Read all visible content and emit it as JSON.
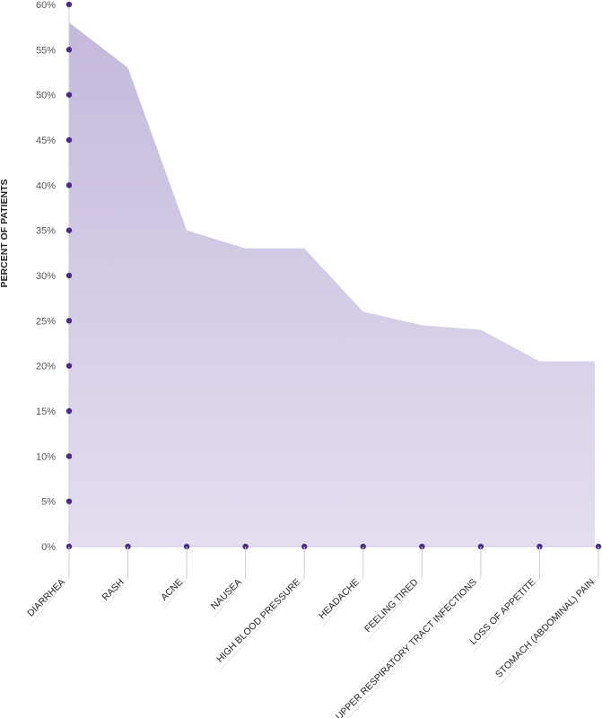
{
  "chart_data": {
    "type": "area",
    "ylabel": "PERCENT OF PATIENTS",
    "xlabel": "",
    "title": "",
    "y_unit": "%",
    "ylim": [
      0,
      60
    ],
    "y_ticks": [
      0,
      5,
      10,
      15,
      20,
      25,
      30,
      35,
      40,
      45,
      50,
      55,
      60
    ],
    "categories": [
      "DIARRHEA",
      "RASH",
      "ACNE",
      "NAUSEA",
      "HIGH BLOOD PRESSURE",
      "HEADACHE",
      "FEELING TIRED",
      "UPPER RESPIRATORY TRACT INFECTIONS",
      "LOSS OF APPETITE",
      "STOMACH (ABDOMINAL) PAIN"
    ],
    "values": [
      58,
      53,
      35,
      33,
      33,
      26,
      24.5,
      24,
      20.5,
      20.5
    ],
    "colors": {
      "area_top": "#c4b9dc",
      "area_bottom": "#e4def0",
      "axis": "#cfc8df",
      "dot": "#4b2a86",
      "leader": "#cccccc"
    },
    "grid": false,
    "legend": "none"
  }
}
